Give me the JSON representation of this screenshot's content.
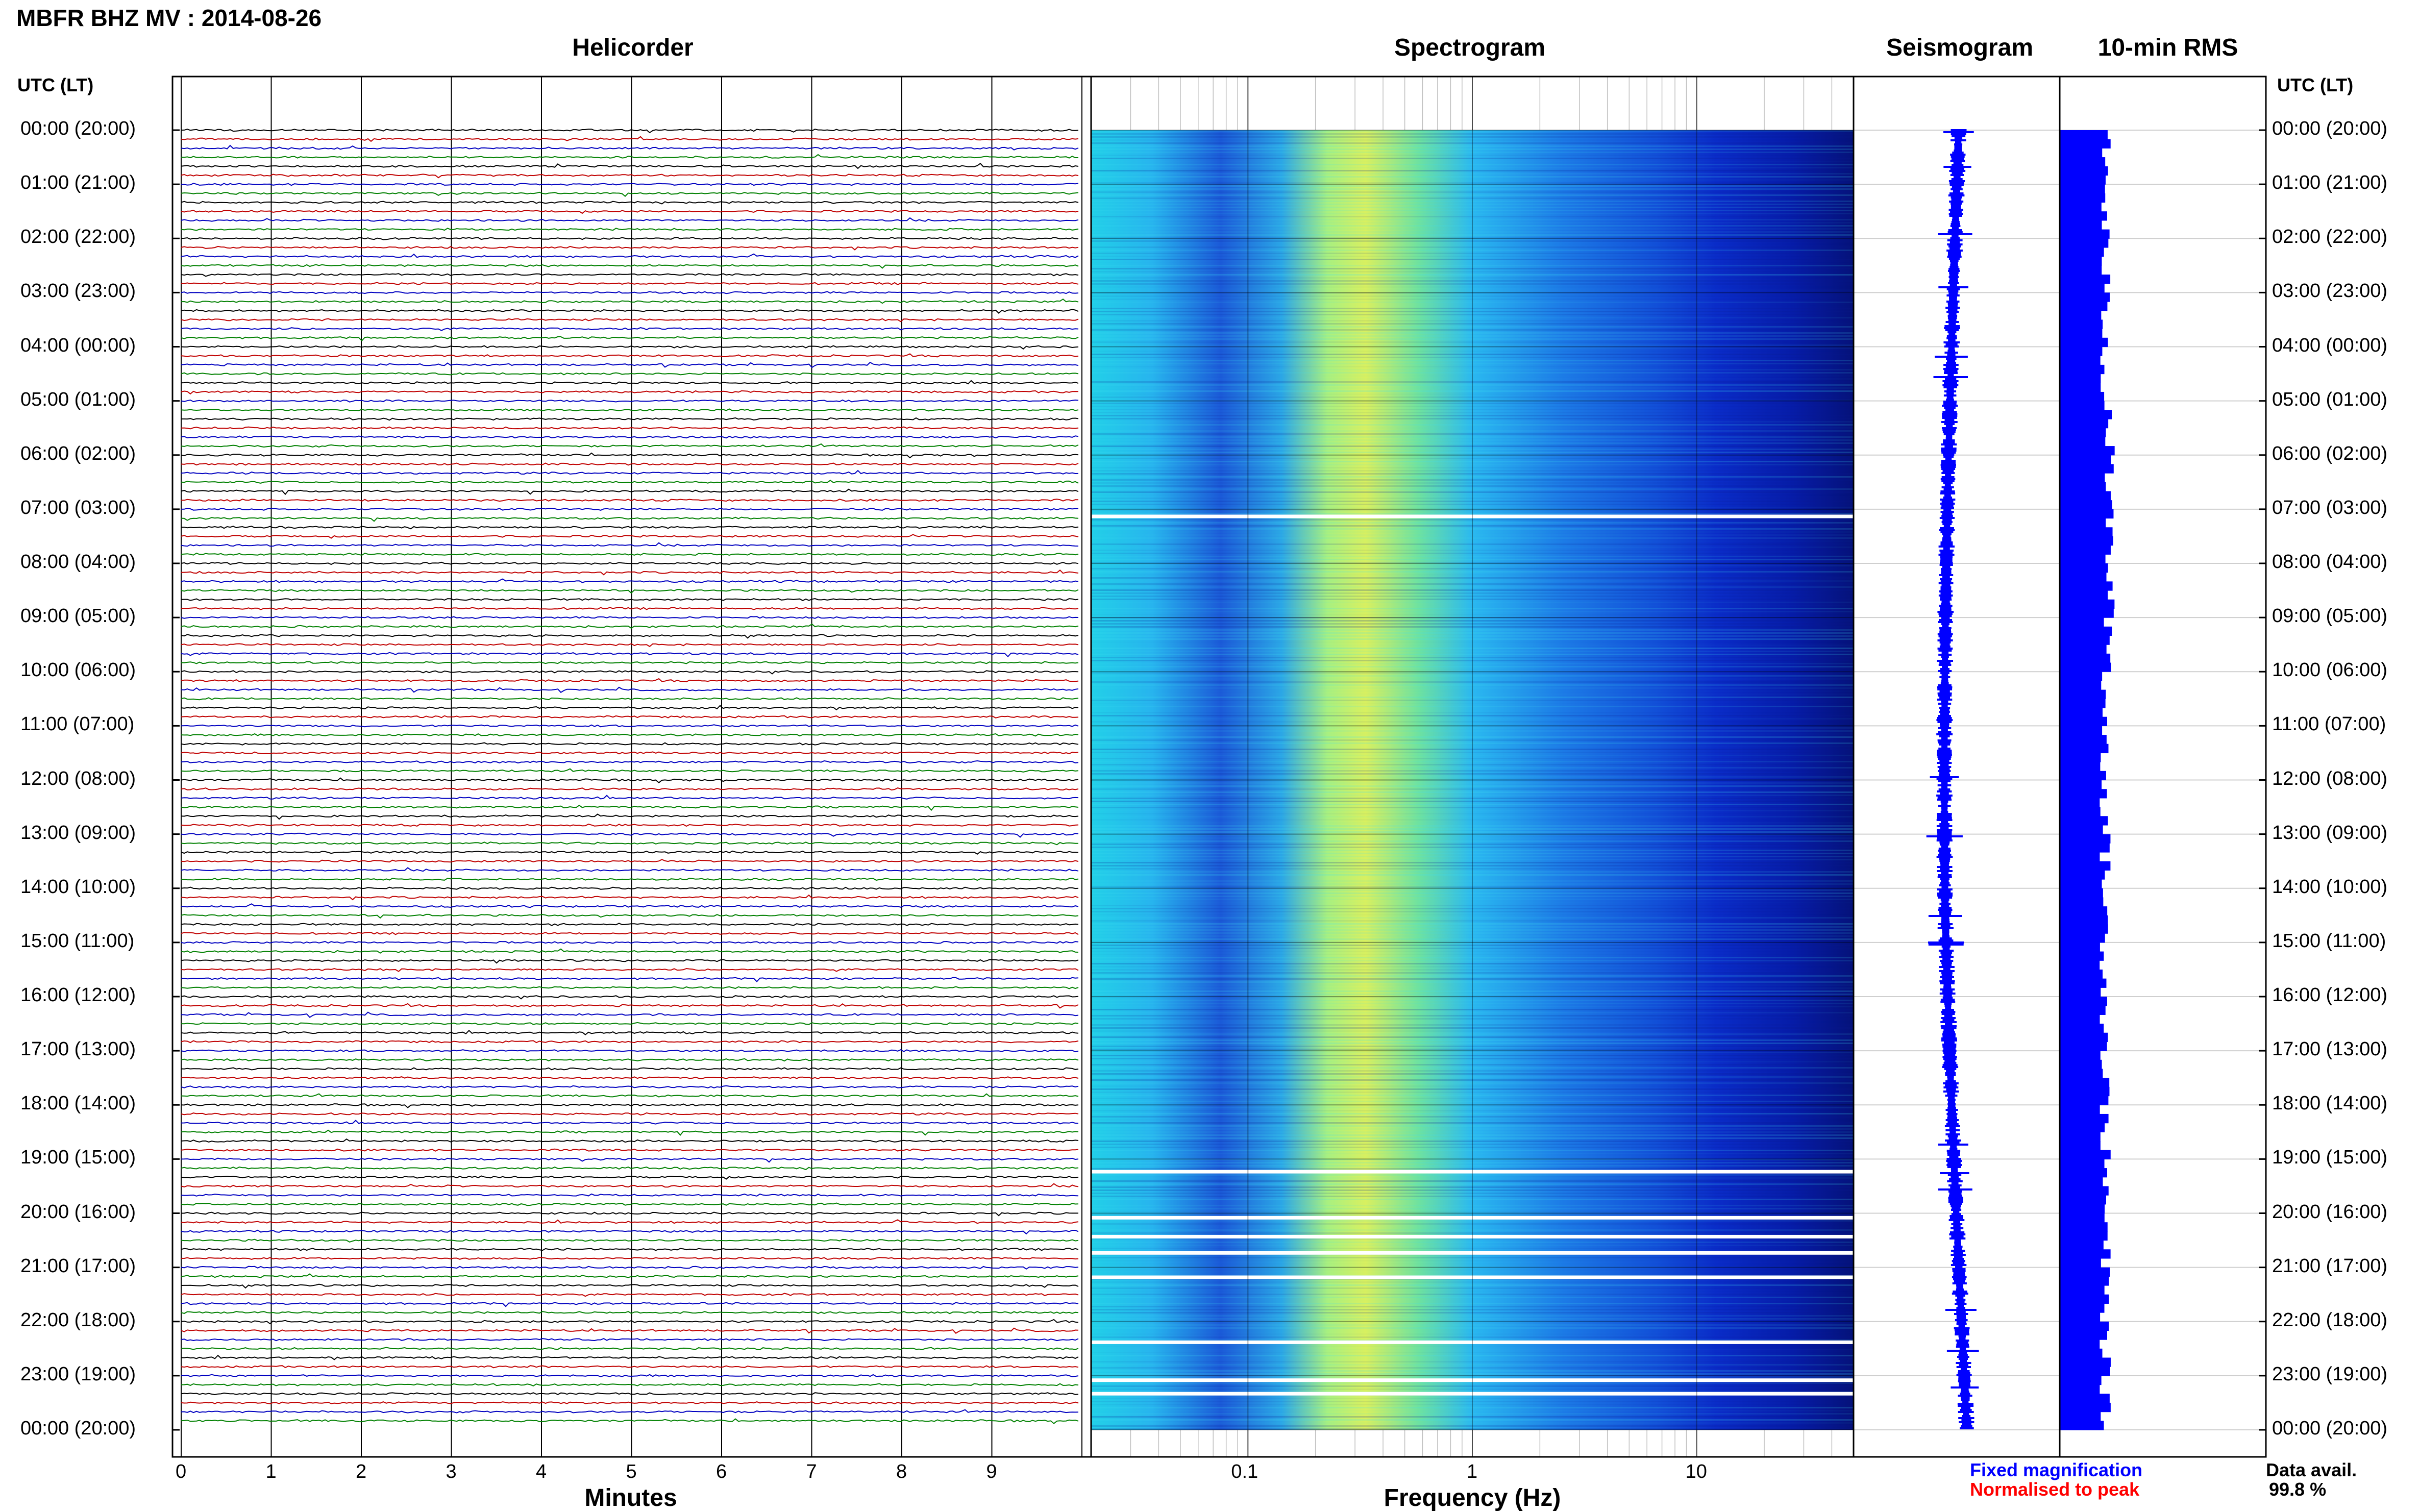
{
  "title": "MBFR BHZ MV : 2014-08-26",
  "panels": {
    "helicorder": "Helicorder",
    "spectrogram": "Spectrogram",
    "seismogram": "Seismogram",
    "rms": "10-min RMS"
  },
  "axis_header_left": "UTC (LT)",
  "axis_header_right": "UTC (LT)",
  "time_labels": [
    "00:00 (20:00)",
    "01:00 (21:00)",
    "02:00 (22:00)",
    "03:00 (23:00)",
    "04:00 (00:00)",
    "05:00 (01:00)",
    "06:00 (02:00)",
    "07:00 (03:00)",
    "08:00 (04:00)",
    "09:00 (05:00)",
    "10:00 (06:00)",
    "11:00 (07:00)",
    "12:00 (08:00)",
    "13:00 (09:00)",
    "14:00 (10:00)",
    "15:00 (11:00)",
    "16:00 (12:00)",
    "17:00 (13:00)",
    "18:00 (14:00)",
    "19:00 (15:00)",
    "20:00 (16:00)",
    "21:00 (17:00)",
    "22:00 (18:00)",
    "23:00 (19:00)",
    "00:00 (20:00)"
  ],
  "minute_ticks": [
    "0",
    "1",
    "2",
    "3",
    "4",
    "5",
    "6",
    "7",
    "8",
    "9"
  ],
  "freq_ticks": [
    "0.1",
    "1",
    "10"
  ],
  "xlabel_helicorder": "Minutes",
  "xlabel_spectrogram": "Frequency (Hz)",
  "legend": {
    "fixed": "Fixed magnification",
    "normalised": "Normalised to peak",
    "fixed_color": "#0000ff",
    "normalised_color": "#ff0000"
  },
  "data_avail_label": "Data avail.",
  "data_avail_value": "99.8 %",
  "colors": {
    "trace_cycle": [
      "#000000",
      "#c00000",
      "#0000c0",
      "#008000"
    ],
    "rms_bar": "#0000ff"
  },
  "chart_data": [
    {
      "type": "line",
      "title": "Helicorder",
      "xlabel": "Minutes",
      "xlim": [
        0,
        10
      ],
      "lines_per_hour": 6,
      "hours": 24
    },
    {
      "type": "heatmap",
      "title": "Spectrogram",
      "xlabel": "Frequency (Hz)",
      "xscale": "log",
      "xlim": [
        0.02,
        50
      ],
      "peak_frequency_hz": 0.35,
      "gap_hours": [
        7.1,
        19.2,
        20.05,
        20.4,
        20.7,
        21.15,
        22.35,
        23.05,
        23.3
      ]
    },
    {
      "type": "line",
      "title": "Seismogram"
    },
    {
      "type": "bar",
      "title": "10-min RMS",
      "bar_count": 144
    }
  ]
}
